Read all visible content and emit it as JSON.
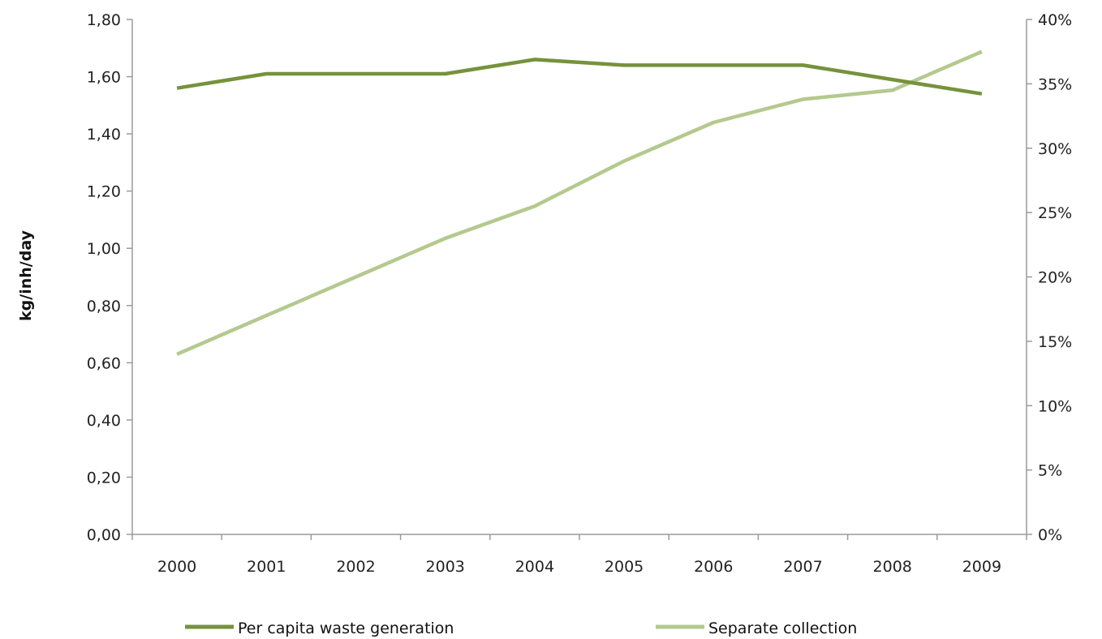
{
  "chart_data": {
    "type": "line",
    "categories": [
      "2000",
      "2001",
      "2002",
      "2003",
      "2004",
      "2005",
      "2006",
      "2007",
      "2008",
      "2009"
    ],
    "y_left": {
      "label": "kg/inh/day",
      "ylim": [
        0,
        1.8
      ],
      "ticks": [
        "0,00",
        "0,20",
        "0,40",
        "0,60",
        "0,80",
        "1,00",
        "1,20",
        "1,40",
        "1,60",
        "1,80"
      ]
    },
    "y_right": {
      "ylim": [
        0,
        40
      ],
      "ticks": [
        "0%",
        "5%",
        "10%",
        "15%",
        "20%",
        "25%",
        "30%",
        "35%",
        "40%"
      ]
    },
    "grid": false,
    "legend_position": "bottom",
    "series": [
      {
        "name": "Per capita waste generation",
        "axis": "left",
        "color": "#76923c",
        "values": [
          1.56,
          1.61,
          1.61,
          1.61,
          1.66,
          1.64,
          1.64,
          1.64,
          1.59,
          1.54
        ]
      },
      {
        "name": "Separate collection",
        "axis": "right",
        "color": "#b4c98e",
        "values": [
          14.0,
          17.0,
          20.0,
          23.0,
          25.5,
          29.0,
          32.0,
          33.8,
          34.5,
          37.5
        ]
      }
    ]
  }
}
